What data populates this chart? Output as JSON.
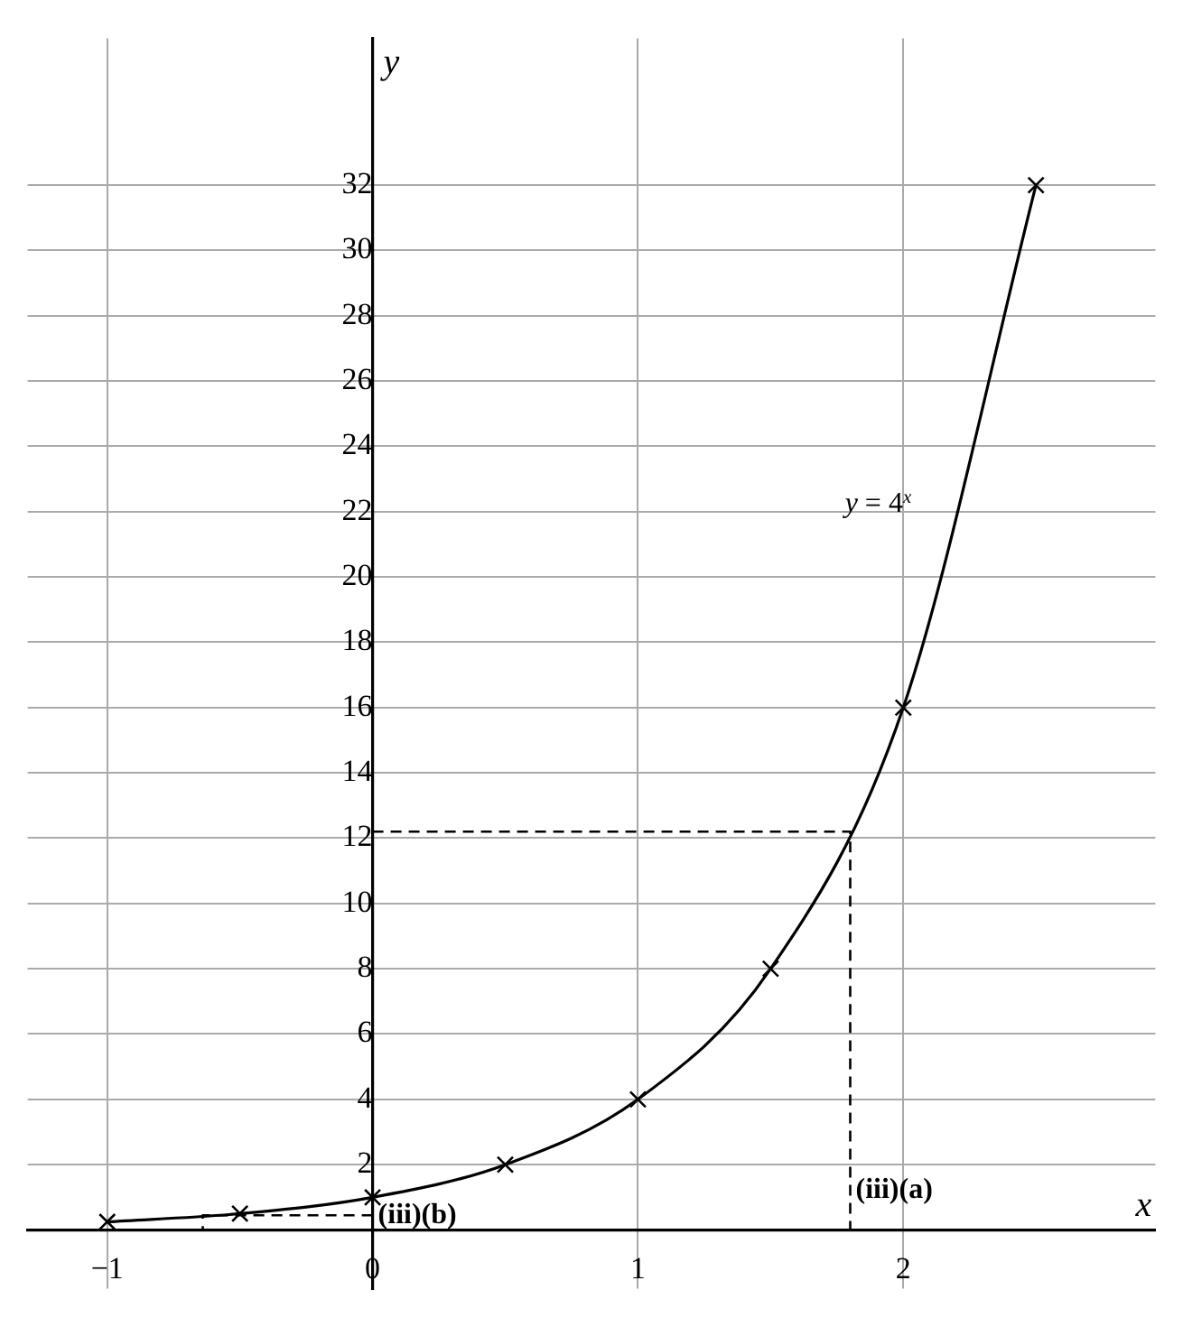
{
  "chart_data": {
    "type": "line",
    "xlabel": "x",
    "ylabel": "y",
    "x": [
      -1,
      -0.5,
      0,
      0.5,
      1,
      1.5,
      2,
      2.5
    ],
    "series": [
      {
        "name": "y = 4$^{x}$",
        "color": "#000000",
        "values": [
          0.25,
          0.5,
          1,
          2,
          4,
          8,
          16,
          32
        ],
        "marker": "cross",
        "line_style": "solid"
      },
      {
        "type": "line",
        "x": [
          0,
          1.8,
          1.8
        ],
        "values": [
          12.2,
          12.2,
          0
        ],
        "color": "#000000",
        "marker": "none",
        "line_style": "dashed"
      },
      {
        "type": "line",
        "x": [
          0,
          -0.64,
          -0.64
        ],
        "values": [
          0.45,
          0.45,
          0
        ],
        "color": "#000000",
        "marker": "none",
        "line_style": "dashed"
      }
    ],
    "xlim": [
      -1.3,
      2.95
    ],
    "ylim": [
      -1.8,
      36.5
    ],
    "xticks": [
      {
        "value": -1,
        "label": "−1"
      },
      0,
      1,
      2
    ],
    "yticks": [
      2,
      4,
      6,
      8,
      10,
      12,
      14,
      16,
      18,
      20,
      22,
      24,
      26,
      28,
      30,
      32
    ],
    "grid": true,
    "legend": false,
    "annotations": [
      {
        "text": "(iii)(a)",
        "x": 1.8,
        "y": 1.2
      },
      {
        "text": "(iii)(b)",
        "x": 0,
        "y": 0.45
      }
    ]
  }
}
